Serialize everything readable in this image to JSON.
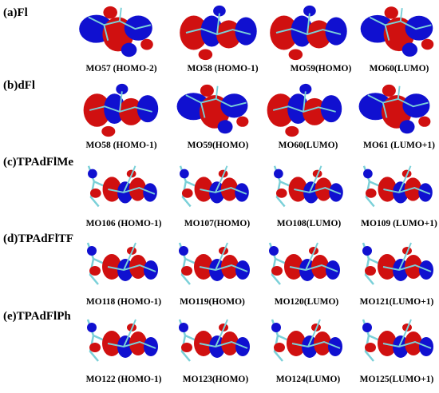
{
  "rows": [
    {
      "label": "(a)Fl",
      "captions": [
        "MO57 (HOMO-2)",
        "MO58 (HOMO-1)",
        "MO59(HOMO)",
        "MO60(LUMO)"
      ]
    },
    {
      "label": "(b)dFl",
      "captions": [
        "MO58 (HOMO-1)",
        "MO59(HOMO)",
        "MO60(LUMO)",
        "MO61 (LUMO+1)"
      ]
    },
    {
      "label": "(c)TPAdFlMe",
      "captions": [
        "MO106 (HOMO-1)",
        "MO107(HOMO)",
        "MO108(LUMO)",
        "MO109 (LUMO+1)"
      ]
    },
    {
      "label": "(d)TPAdFlTF",
      "captions": [
        "MO118 (HOMO-1)",
        "MO119(HOMO)",
        "MO120(LUMO)",
        "MO121(LUMO+1)"
      ]
    },
    {
      "label": "(e)TPAdFlPh",
      "captions": [
        "MO122 (HOMO-1)",
        "MO123(HOMO)",
        "MO124(LUMO)",
        "MO125(LUMO+1)"
      ]
    }
  ]
}
